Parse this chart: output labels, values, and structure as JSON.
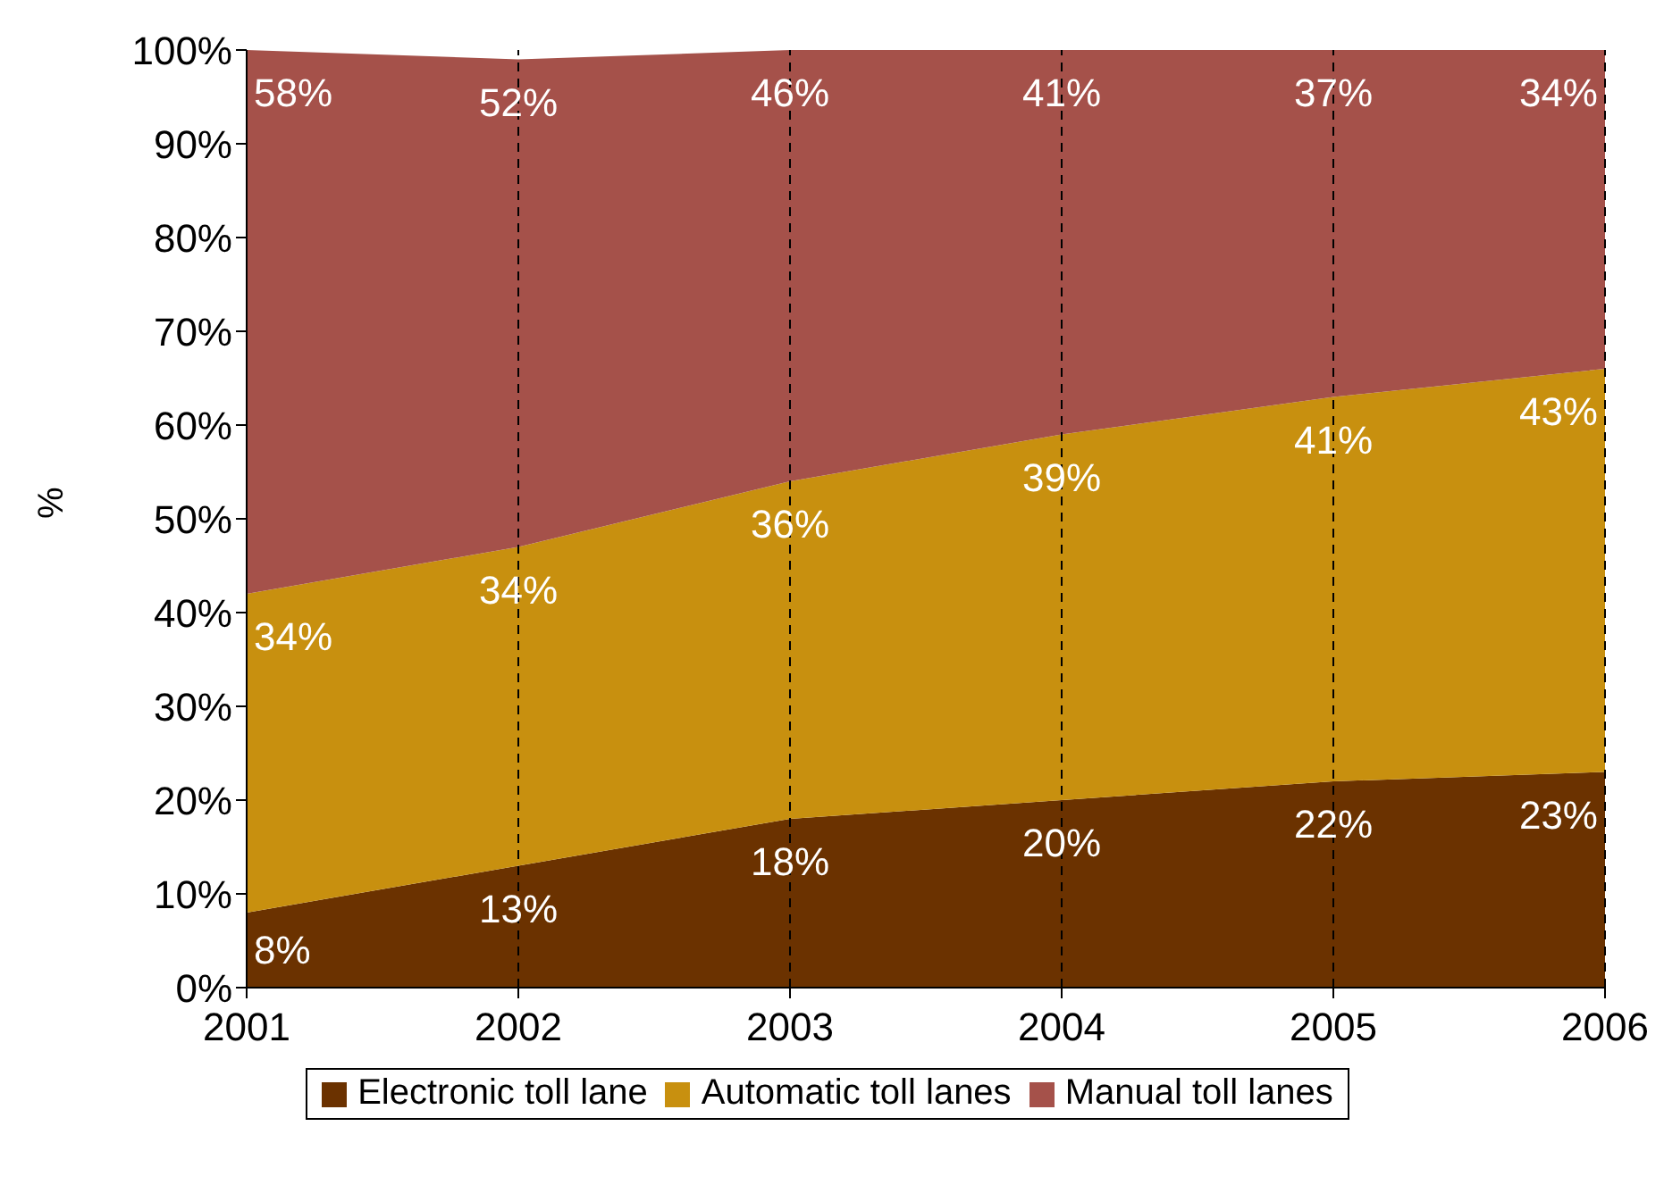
{
  "chart_data": {
    "type": "area",
    "stacked": true,
    "ylabel": "%",
    "x": [
      2001,
      2002,
      2003,
      2004,
      2005,
      2006
    ],
    "xlim": [
      2001,
      2006
    ],
    "xticks": [
      2001,
      2002,
      2003,
      2004,
      2005,
      2006
    ],
    "ylim": [
      0,
      100
    ],
    "yticks": [
      {
        "value": 0,
        "label": "0%"
      },
      {
        "value": 10,
        "label": "10%"
      },
      {
        "value": 20,
        "label": "20%"
      },
      {
        "value": 30,
        "label": "30%"
      },
      {
        "value": 40,
        "label": "40%"
      },
      {
        "value": 50,
        "label": "50%"
      },
      {
        "value": 60,
        "label": "60%"
      },
      {
        "value": 70,
        "label": "70%"
      },
      {
        "value": 80,
        "label": "80%"
      },
      {
        "value": 90,
        "label": "90%"
      },
      {
        "value": 100,
        "label": "100%"
      }
    ],
    "grid": "x",
    "legend": "bottom",
    "series": [
      {
        "name": "Electronic toll lane",
        "color": "#6b3200",
        "values": [
          8,
          13,
          18,
          20,
          22,
          23
        ],
        "value_labels": [
          "8%",
          "13%",
          "18%",
          "20%",
          "22%",
          "23%"
        ]
      },
      {
        "name": "Automatic toll lanes",
        "color": "#c8900f",
        "values": [
          34,
          34,
          36,
          39,
          41,
          43
        ],
        "value_labels": [
          "34%",
          "34%",
          "36%",
          "39%",
          "41%",
          "43%"
        ]
      },
      {
        "name": "Manual toll lanes",
        "color": "#a5514a",
        "values": [
          58,
          52,
          46,
          41,
          37,
          34
        ],
        "value_labels": [
          "58%",
          "52%",
          "46%",
          "41%",
          "37%",
          "34%"
        ]
      }
    ]
  }
}
